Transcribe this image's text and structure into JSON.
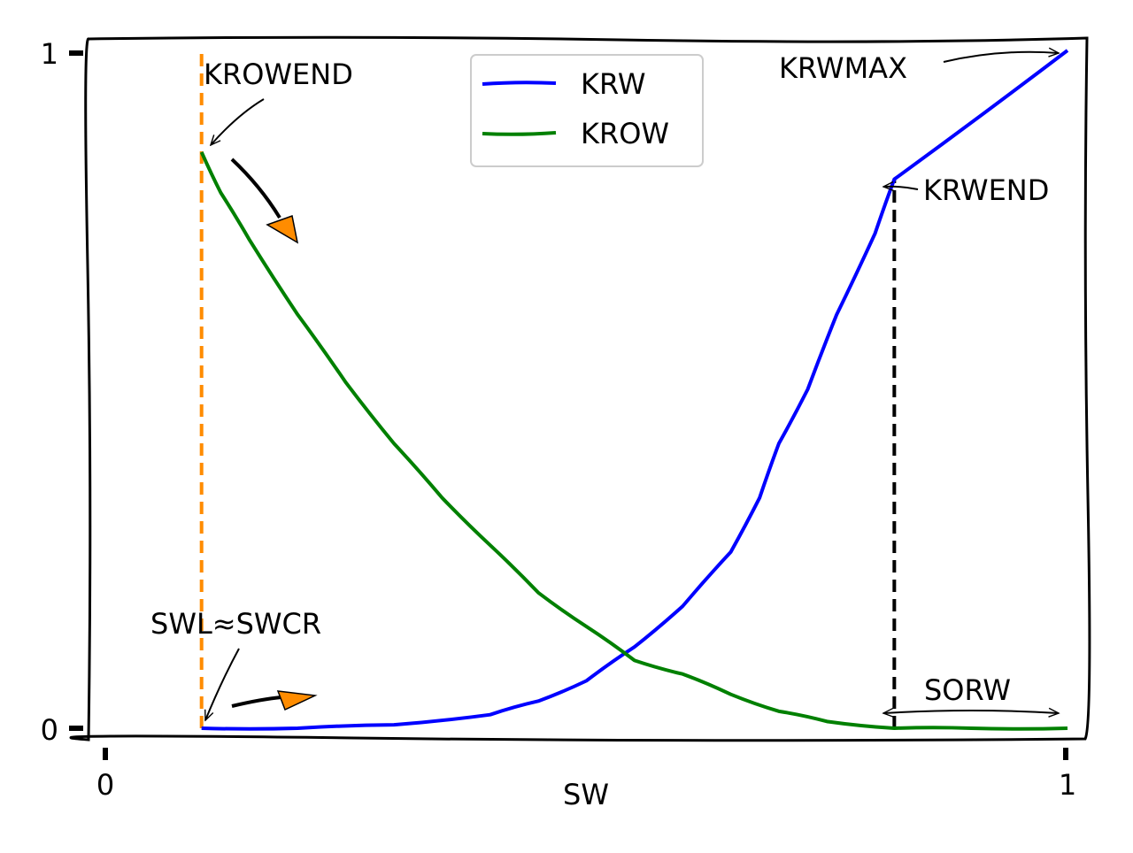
{
  "chart_data": {
    "type": "line",
    "title": "",
    "xlabel": "SW",
    "ylabel": "",
    "xlim": [
      0,
      1
    ],
    "ylim": [
      0,
      1
    ],
    "xticks": [
      {
        "value": 0,
        "label": "0"
      },
      {
        "value": 1,
        "label": "1"
      }
    ],
    "yticks": [
      {
        "value": 0,
        "label": "0"
      },
      {
        "value": 1,
        "label": "1"
      }
    ],
    "grid": false,
    "legend": {
      "placement": "top-center"
    },
    "series": [
      {
        "name": "KRW",
        "color": "#0000ff",
        "x": [
          0.1,
          0.2,
          0.3,
          0.4,
          0.45,
          0.5,
          0.55,
          0.6,
          0.65,
          0.68,
          0.7,
          0.73,
          0.76,
          0.8,
          0.82,
          1.0
        ],
        "y": [
          0.0,
          0.0,
          0.005,
          0.02,
          0.04,
          0.07,
          0.12,
          0.18,
          0.26,
          0.34,
          0.42,
          0.5,
          0.61,
          0.73,
          0.81,
          1.0
        ]
      },
      {
        "name": "KROW",
        "color": "#008000",
        "x": [
          0.1,
          0.12,
          0.15,
          0.2,
          0.25,
          0.3,
          0.35,
          0.4,
          0.45,
          0.5,
          0.55,
          0.6,
          0.65,
          0.7,
          0.75,
          0.82,
          0.9,
          1.0
        ],
        "y": [
          0.85,
          0.79,
          0.72,
          0.61,
          0.51,
          0.42,
          0.34,
          0.27,
          0.2,
          0.15,
          0.1,
          0.08,
          0.05,
          0.025,
          0.01,
          0.0,
          0.0,
          0.0
        ]
      }
    ],
    "reference_lines": [
      {
        "orientation": "vertical",
        "x": 0.1,
        "y_range": [
          0,
          1
        ],
        "color": "#ff8c00",
        "style": "dashed"
      },
      {
        "orientation": "vertical",
        "x": 0.82,
        "y_range": [
          0,
          0.81
        ],
        "color": "#000000",
        "style": "dashed"
      }
    ],
    "annotations": [
      {
        "text": "KROWEND",
        "x": 0.1,
        "y": 0.85
      },
      {
        "text": "SWL≈SWCR",
        "x": 0.1,
        "y": 0.0
      },
      {
        "text": "KRWMAX",
        "x": 1.0,
        "y": 1.0
      },
      {
        "text": "KRWEND",
        "x": 0.82,
        "y": 0.81
      },
      {
        "text": "SORW",
        "x": 0.91,
        "y": 0.0
      }
    ],
    "arrow_color": "#ff8c00"
  }
}
